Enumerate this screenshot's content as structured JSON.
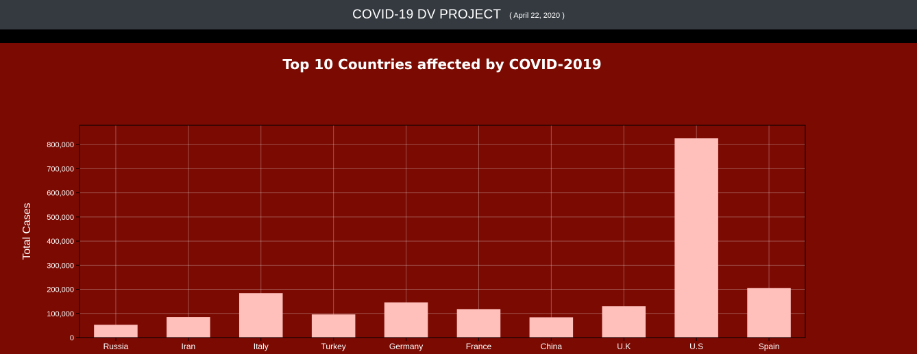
{
  "header": {
    "title": "COVID-19 DV PROJECT",
    "date": "( April 22, 2020 )"
  },
  "colors": {
    "background": "#7a0a02",
    "bar": "#ffbfbb",
    "header_bg": "#343a40"
  },
  "chart_data": {
    "type": "bar",
    "title": "Top 10 Countries affected by COVID-2019",
    "ylabel": "Total Cases",
    "xlabel": "",
    "ylim": [
      0,
      880000
    ],
    "yticks": [
      0,
      100000,
      200000,
      300000,
      400000,
      500000,
      600000,
      700000,
      800000
    ],
    "ytick_labels": [
      "0",
      "100,000",
      "200,000",
      "300,000",
      "400,000",
      "500,000",
      "600,000",
      "700,000",
      "800,000"
    ],
    "grid": true,
    "categories": [
      "Russia",
      "Iran",
      "Italy",
      "Turkey",
      "Germany",
      "France",
      "China",
      "U.K",
      "U.S",
      "Spain"
    ],
    "values": [
      53000,
      85000,
      184000,
      96000,
      146000,
      118000,
      84000,
      130000,
      826000,
      205000
    ]
  }
}
